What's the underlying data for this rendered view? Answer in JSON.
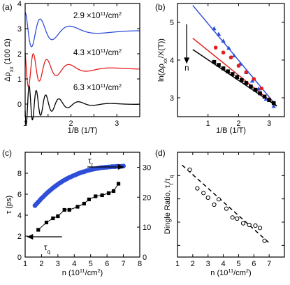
{
  "chart_data": [
    {
      "panel": "(a)",
      "type": "line",
      "xlabel": "1/B (1/T)",
      "ylabel": "Δρ_xx (100 Ω)",
      "ylabel_parts": {
        "main": "Δρ",
        "sub": "xx",
        "rest": " (100 Ω)"
      },
      "xlim": [
        1,
        3.5
      ],
      "ylim": [
        -0.5,
        4
      ],
      "xticks": [
        "1",
        "2",
        "3"
      ],
      "yticks": [
        "0",
        "1",
        "2",
        "3",
        "4"
      ],
      "series": [
        {
          "name": "2.9 ×10¹¹/cm²",
          "label_parts": {
            "main": "2.9 ×10",
            "sup1": "11",
            "mid": "/cm",
            "sup2": "2"
          },
          "color": "#2f4fd8",
          "baseline": 2.9,
          "amp0": 0.75,
          "decay": 1.35,
          "freq": 4.0
        },
        {
          "name": "4.3 ×10¹¹/cm²",
          "label_parts": {
            "main": "4.3 ×10",
            "sup1": "11",
            "mid": "/cm",
            "sup2": "2"
          },
          "color": "#e41e1e",
          "baseline": 1.4,
          "amp0": 0.8,
          "decay": 1.6,
          "freq": 5.9
        },
        {
          "name": "6.3 ×10¹¹/cm²",
          "label_parts": {
            "main": "6.3 ×10",
            "sup1": "11",
            "mid": "/cm",
            "sup2": "2"
          },
          "color": "#000000",
          "baseline": 0.0,
          "amp0": 0.85,
          "decay": 1.9,
          "freq": 8.7
        }
      ]
    },
    {
      "panel": "(b)",
      "type": "scatter",
      "xlabel": "1/B (1/T)",
      "ylabel": "ln(Δρ_xx/X(T))",
      "ylabel_parts": {
        "main": "ln(Δρ",
        "sub": "xx",
        "rest": "/X(T))"
      },
      "xlim": [
        0,
        3.5
      ],
      "ylim": [
        2.5,
        5.5
      ],
      "xticks": [
        "1",
        "2",
        "3"
      ],
      "yticks": [
        "3",
        "4",
        "5"
      ],
      "arrow_label": "n",
      "series": [
        {
          "color": "#2f4fd8",
          "marker": "triangle",
          "x": [
            1.2,
            1.35,
            1.5,
            1.68,
            1.85,
            2.05,
            2.25,
            2.45,
            2.65,
            2.9,
            3.15
          ],
          "y": [
            4.84,
            4.69,
            4.51,
            4.32,
            4.12,
            3.9,
            3.68,
            3.45,
            3.24,
            2.97,
            2.78
          ],
          "fit": {
            "x": [
              0.5,
              3.25
            ],
            "y": [
              5.45,
              2.78
            ]
          }
        },
        {
          "color": "#e41e1e",
          "marker": "circle",
          "x": [
            1.25,
            1.5,
            1.75,
            2.0,
            2.25,
            2.5,
            2.75,
            3.0
          ],
          "y": [
            4.33,
            4.2,
            4.07,
            3.85,
            3.68,
            3.5,
            3.25,
            2.96
          ],
          "fit": {
            "x": [
              0.5,
              3.25
            ],
            "y": [
              4.58,
              2.78
            ]
          }
        },
        {
          "color": "#000000",
          "marker": "square",
          "x": [
            1.2,
            1.35,
            1.5,
            1.65,
            1.8,
            1.95,
            2.1,
            2.25,
            2.4,
            2.55,
            2.7,
            2.85,
            3.0,
            3.15
          ],
          "y": [
            3.95,
            3.87,
            3.78,
            3.7,
            3.63,
            3.55,
            3.47,
            3.39,
            3.3,
            3.21,
            3.12,
            3.03,
            2.94,
            2.86
          ],
          "fit": {
            "x": [
              0.5,
              3.25
            ],
            "y": [
              4.28,
              2.78
            ]
          }
        }
      ]
    },
    {
      "panel": "(c)",
      "type": "scatter",
      "xlabel": "n (10¹¹/cm²)",
      "xlabel_parts": {
        "main": "n (10",
        "sup1": "11",
        "mid": "/cm",
        "sup2": "2",
        "rest": ")"
      },
      "ylabel": "τ (ps)",
      "ylabel_right": "",
      "xlim": [
        1,
        8
      ],
      "ylim_left": [
        0,
        10
      ],
      "ylim_right": [
        0,
        35
      ],
      "xticks": [
        "1",
        "2",
        "3",
        "4",
        "5",
        "6",
        "7",
        "8"
      ],
      "yticks_left": [
        "0",
        "2",
        "4",
        "6",
        "8"
      ],
      "yticks_right": [
        "0",
        "10",
        "20",
        "30"
      ],
      "tau_t_label": {
        "main": "τ",
        "sub": "t"
      },
      "tau_q_label": {
        "main": "τ",
        "sub": "q"
      },
      "series": [
        {
          "name": "τq",
          "axis": "left",
          "marker": "square",
          "color": "#000000",
          "x": [
            1.8,
            2.3,
            2.7,
            3.0,
            3.4,
            3.7,
            4.2,
            4.6,
            4.9,
            5.3,
            5.7,
            6.1,
            6.4,
            6.7
          ],
          "y": [
            2.6,
            3.3,
            3.7,
            3.9,
            4.5,
            4.5,
            4.8,
            5.1,
            5.5,
            5.8,
            5.9,
            6.1,
            6.3,
            7.0
          ]
        },
        {
          "name": "τt",
          "axis": "right",
          "marker": "circle",
          "color": "#2f4fd8",
          "x": [
            1.6,
            1.7,
            1.8,
            1.9,
            2.0,
            2.1,
            2.2,
            2.3,
            2.4,
            2.5,
            2.6,
            2.7,
            2.8,
            2.9,
            3.0,
            3.1,
            3.2,
            3.3,
            3.4,
            3.5,
            3.6,
            3.7,
            3.8,
            3.9,
            4.0,
            4.1,
            4.2,
            4.3,
            4.4,
            4.5,
            4.6,
            4.7,
            4.8,
            4.9,
            5.0,
            5.1,
            5.2,
            5.3,
            5.4,
            5.5,
            5.6,
            5.7,
            5.8,
            5.9,
            6.0,
            6.1,
            6.2,
            6.3,
            6.4,
            6.5,
            6.6,
            6.7,
            6.8,
            6.9,
            7.0
          ],
          "y": [
            17.2,
            17.8,
            18.4,
            19.0,
            19.6,
            20.1,
            20.7,
            21.2,
            21.7,
            22.2,
            22.6,
            23.1,
            23.5,
            23.9,
            24.3,
            24.7,
            25.0,
            25.4,
            25.7,
            26.0,
            26.3,
            26.6,
            26.8,
            27.1,
            27.3,
            27.5,
            27.8,
            28.0,
            28.2,
            28.4,
            28.5,
            28.7,
            28.9,
            29.0,
            29.2,
            29.3,
            29.4,
            29.5,
            29.6,
            29.7,
            29.8,
            29.9,
            29.9,
            30.0,
            30.0,
            30.1,
            30.1,
            30.2,
            30.2,
            30.2,
            30.3,
            30.3,
            30.3,
            30.3,
            30.4
          ]
        }
      ]
    },
    {
      "panel": "(d)",
      "type": "scatter",
      "xlabel": "n (10¹¹/cm²)",
      "xlabel_parts": {
        "main": "n (10",
        "sup1": "11",
        "mid": "/cm",
        "sup2": "2",
        "rest": ")"
      },
      "ylabel": "Dingle Ratio, τt/τq",
      "ylabel_parts": {
        "main": "Dingle Ratio, τ",
        "sub1": "t",
        "mid": "/τ",
        "sub2": "q"
      },
      "xlim": [
        1,
        8
      ],
      "ylim": [
        3.5,
        8.0
      ],
      "xticks": [
        "1",
        "2",
        "3",
        "4",
        "5",
        "6",
        "7"
      ],
      "series": [
        {
          "marker": "open-circle",
          "color": "#000000",
          "x": [
            1.8,
            2.3,
            2.7,
            3.0,
            3.4,
            3.7,
            4.2,
            4.6,
            4.9,
            5.3,
            5.7,
            6.1,
            6.4,
            6.7
          ],
          "y": [
            7.25,
            6.45,
            6.25,
            6.05,
            5.75,
            5.98,
            5.58,
            5.2,
            5.15,
            4.95,
            4.88,
            4.85,
            4.75,
            4.2
          ]
        }
      ],
      "fit": {
        "x": [
          1.3,
          7.05
        ],
        "y": [
          7.45,
          4.08
        ],
        "style": "dashed"
      }
    }
  ]
}
